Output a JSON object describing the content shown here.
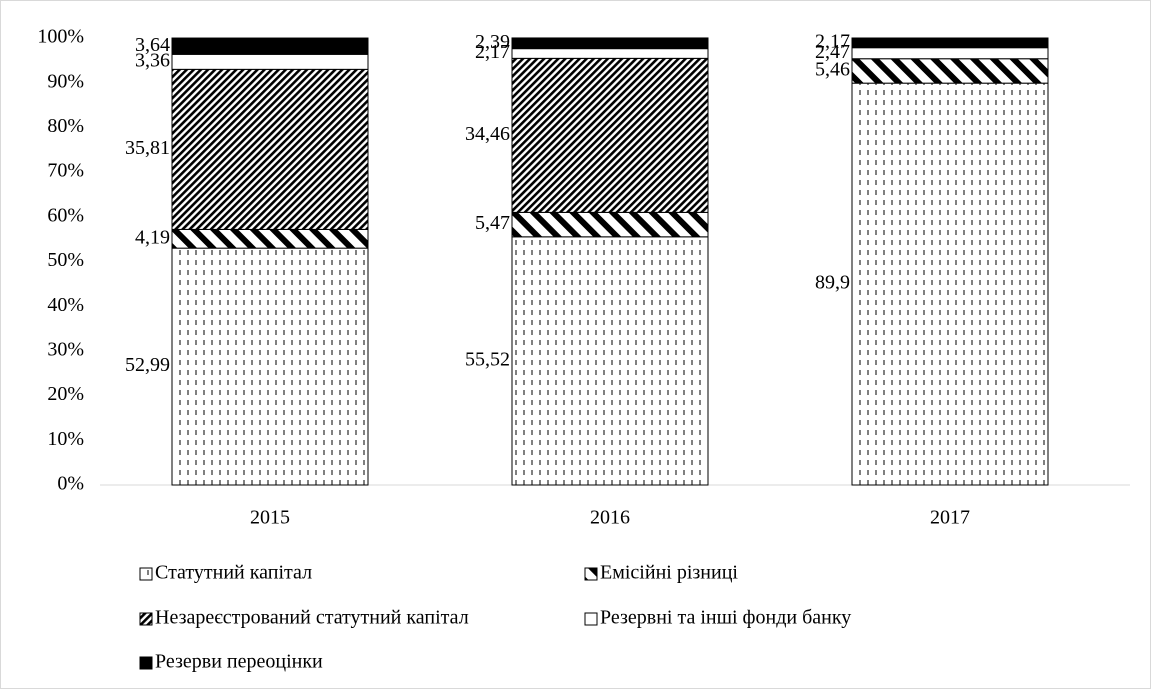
{
  "chart_data": {
    "type": "stacked-bar",
    "categories": [
      "2015",
      "2016",
      "2017"
    ],
    "ylim": [
      0,
      100
    ],
    "yticks": [
      {
        "value": 0,
        "label": "0%"
      },
      {
        "value": 10,
        "label": "10%"
      },
      {
        "value": 20,
        "label": "20%"
      },
      {
        "value": 30,
        "label": "30%"
      },
      {
        "value": 40,
        "label": "40%"
      },
      {
        "value": 50,
        "label": "50%"
      },
      {
        "value": 60,
        "label": "60%"
      },
      {
        "value": 70,
        "label": "70%"
      },
      {
        "value": 80,
        "label": "80%"
      },
      {
        "value": 90,
        "label": "90%"
      },
      {
        "value": 100,
        "label": "100%"
      }
    ],
    "series": [
      {
        "name": "Статутний капітал",
        "pattern": "dots",
        "values": [
          52.99,
          55.52,
          89.9
        ],
        "value_labels": [
          "52,99",
          "55,52",
          "89,9"
        ]
      },
      {
        "name": "Емісійні різниці",
        "pattern": "wide-hatch",
        "values": [
          4.19,
          5.47,
          5.46
        ],
        "value_labels": [
          "4,19",
          "5,47",
          "5,46"
        ]
      },
      {
        "name": "Незареєстрований статутний капітал",
        "pattern": "dense-hatch",
        "values": [
          35.81,
          34.46,
          null
        ],
        "value_labels": [
          "35,81",
          "34,46",
          null
        ]
      },
      {
        "name": "Резервні та інші фонди банку",
        "pattern": "white",
        "values": [
          3.36,
          2.17,
          2.47
        ],
        "value_labels": [
          "3,36",
          "2,17",
          "2,47"
        ]
      },
      {
        "name": "Резерви переоцінки",
        "pattern": "black",
        "values": [
          3.64,
          2.39,
          2.17
        ],
        "value_labels": [
          "3,64",
          "2,39",
          "2,17"
        ]
      }
    ]
  }
}
